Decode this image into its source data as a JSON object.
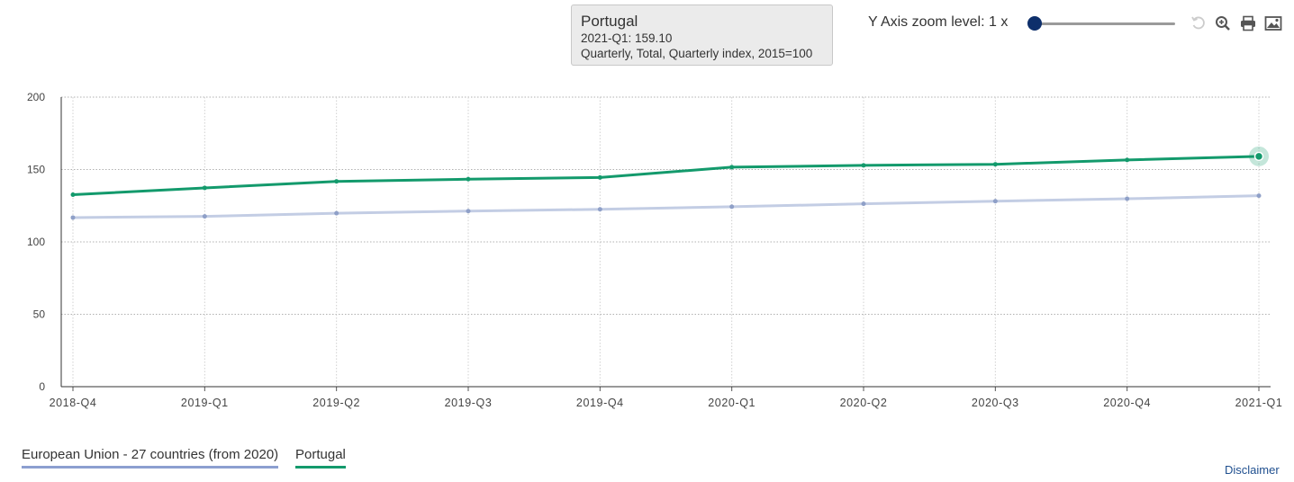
{
  "tooltip": {
    "title": "Portugal",
    "line1": "2021-Q1: 159.10",
    "line2": "Quarterly, Total, Quarterly index, 2015=100"
  },
  "toolbar": {
    "zoom_label": "Y Axis zoom level: 1 x",
    "zoom_level": 1
  },
  "legend": [
    {
      "label": "European Union - 27 countries (from 2020)",
      "color": "#8c9fd0"
    },
    {
      "label": "Portugal",
      "color": "#139a6c"
    }
  ],
  "disclaimer": "Disclaimer",
  "chart_data": {
    "type": "line",
    "categories": [
      "2018-Q4",
      "2019-Q1",
      "2019-Q2",
      "2019-Q3",
      "2019-Q4",
      "2020-Q1",
      "2020-Q2",
      "2020-Q3",
      "2020-Q4",
      "2021-Q1"
    ],
    "yticks": [
      0,
      50,
      100,
      150,
      200
    ],
    "ylim": [
      0,
      200
    ],
    "grid": true,
    "legend_position": "bottom-left",
    "series": [
      {
        "name": "European Union - 27 countries (from 2020)",
        "color": "#c3cde4",
        "values": [
          116.8,
          117.6,
          119.8,
          121.3,
          122.5,
          124.3,
          126.3,
          128.1,
          129.8,
          131.9
        ]
      },
      {
        "name": "Portugal",
        "color": "#139a6c",
        "values": [
          132.6,
          137.3,
          141.8,
          143.3,
          144.5,
          151.6,
          152.9,
          153.6,
          156.6,
          159.1
        ]
      }
    ],
    "highlighted": {
      "series": 1,
      "index": 9
    }
  }
}
